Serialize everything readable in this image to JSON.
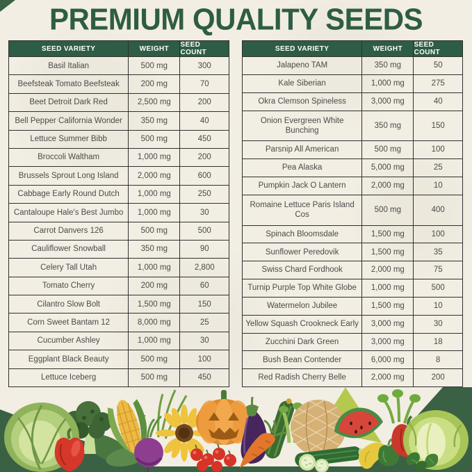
{
  "title": "PREMIUM QUALITY SEEDS",
  "colors": {
    "green_dark": "#2e5d45",
    "green_triangle": "#3a6144",
    "paper": "#f2eee3",
    "border": "#2f2f2f",
    "text": "#4a4a4a",
    "header_text": "#ffffff"
  },
  "tables": [
    {
      "position": "left",
      "headers": [
        "SEED VARIETY",
        "WEIGHT",
        "SEED COUNT"
      ],
      "rows": [
        {
          "variety": "Basil Italian",
          "weight": "500 mg",
          "count": "300"
        },
        {
          "variety": "Beefsteak Tomato Beefsteak",
          "weight": "200 mg",
          "count": "70"
        },
        {
          "variety": "Beet Detroit Dark Red",
          "weight": "2,500 mg",
          "count": "200"
        },
        {
          "variety": "Bell Pepper California Wonder",
          "weight": "350 mg",
          "count": "40"
        },
        {
          "variety": "Lettuce Summer Bibb",
          "weight": "500 mg",
          "count": "450"
        },
        {
          "variety": "Broccoli Waltham",
          "weight": "1,000 mg",
          "count": "200"
        },
        {
          "variety": "Brussels Sprout Long Island",
          "weight": "2,000 mg",
          "count": "600"
        },
        {
          "variety": "Cabbage Early Round Dutch",
          "weight": "1,000 mg",
          "count": "250"
        },
        {
          "variety": "Cantaloupe Hale's Best Jumbo",
          "weight": "1,000 mg",
          "count": "30"
        },
        {
          "variety": "Carrot Danvers 126",
          "weight": "500 mg",
          "count": "500"
        },
        {
          "variety": "Cauliflower Snowball",
          "weight": "350 mg",
          "count": "90"
        },
        {
          "variety": "Celery Tall Utah",
          "weight": "1,000 mg",
          "count": "2,800"
        },
        {
          "variety": "Tomato Cherry",
          "weight": "200 mg",
          "count": "60"
        },
        {
          "variety": "Cilantro Slow Bolt",
          "weight": "1,500 mg",
          "count": "150"
        },
        {
          "variety": "Corn Sweet Bantam 12",
          "weight": "8,000 mg",
          "count": "25"
        },
        {
          "variety": "Cucumber Ashley",
          "weight": "1,000 mg",
          "count": "30"
        },
        {
          "variety": "Eggplant Black Beauty",
          "weight": "500 mg",
          "count": "100"
        },
        {
          "variety": "Lettuce Iceberg",
          "weight": "500 mg",
          "count": "450"
        }
      ]
    },
    {
      "position": "right",
      "headers": [
        "SEED VARIETY",
        "WEIGHT",
        "SEED COUNT"
      ],
      "rows": [
        {
          "variety": "Jalapeno TAM",
          "weight": "350 mg",
          "count": "50"
        },
        {
          "variety": "Kale Siberian",
          "weight": "1,000 mg",
          "count": "275"
        },
        {
          "variety": "Okra Clemson Spineless",
          "weight": "3,000 mg",
          "count": "40"
        },
        {
          "variety": "Onion Evergreen White Bunching",
          "weight": "350 mg",
          "count": "150",
          "tall": true
        },
        {
          "variety": "Parsnip All American",
          "weight": "500 mg",
          "count": "100"
        },
        {
          "variety": "Pea Alaska",
          "weight": "5,000 mg",
          "count": "25"
        },
        {
          "variety": "Pumpkin Jack O Lantern",
          "weight": "2,000 mg",
          "count": "10"
        },
        {
          "variety": "Romaine Lettuce Paris Island Cos",
          "weight": "500 mg",
          "count": "400",
          "tall": true
        },
        {
          "variety": "Spinach Bloomsdale",
          "weight": "1,500 mg",
          "count": "100"
        },
        {
          "variety": "Sunflower Peredovik",
          "weight": "1,500 mg",
          "count": "35"
        },
        {
          "variety": "Swiss Chard Fordhook",
          "weight": "2,000 mg",
          "count": "75"
        },
        {
          "variety": "Turnip Purple Top White Globe",
          "weight": "1,000 mg",
          "count": "500"
        },
        {
          "variety": "Watermelon Jubilee",
          "weight": "1,500 mg",
          "count": "10"
        },
        {
          "variety": "Yellow Squash Crookneck Early",
          "weight": "3,000 mg",
          "count": "30"
        },
        {
          "variety": "Zucchini Dark Green",
          "weight": "3,000 mg",
          "count": "18"
        },
        {
          "variety": "Bush Bean Contender",
          "weight": "6,000 mg",
          "count": "8"
        },
        {
          "variety": "Red Radish Cherry Belle",
          "weight": "2,000 mg",
          "count": "200"
        }
      ]
    }
  ],
  "decor": {
    "vegetables": [
      "cabbage",
      "chard",
      "broccoli",
      "red bell pepper",
      "corn",
      "beet",
      "green onion",
      "sunflower",
      "pumpkin jack o lantern",
      "cherry tomatoes",
      "eggplant",
      "zucchini",
      "carrot",
      "celery stalks",
      "cantaloupe",
      "cucumber",
      "cucumber slices",
      "watermelon",
      "yellow squash",
      "green pepper",
      "red pepper",
      "celery bunch",
      "iceberg lettuce",
      "basil"
    ]
  }
}
